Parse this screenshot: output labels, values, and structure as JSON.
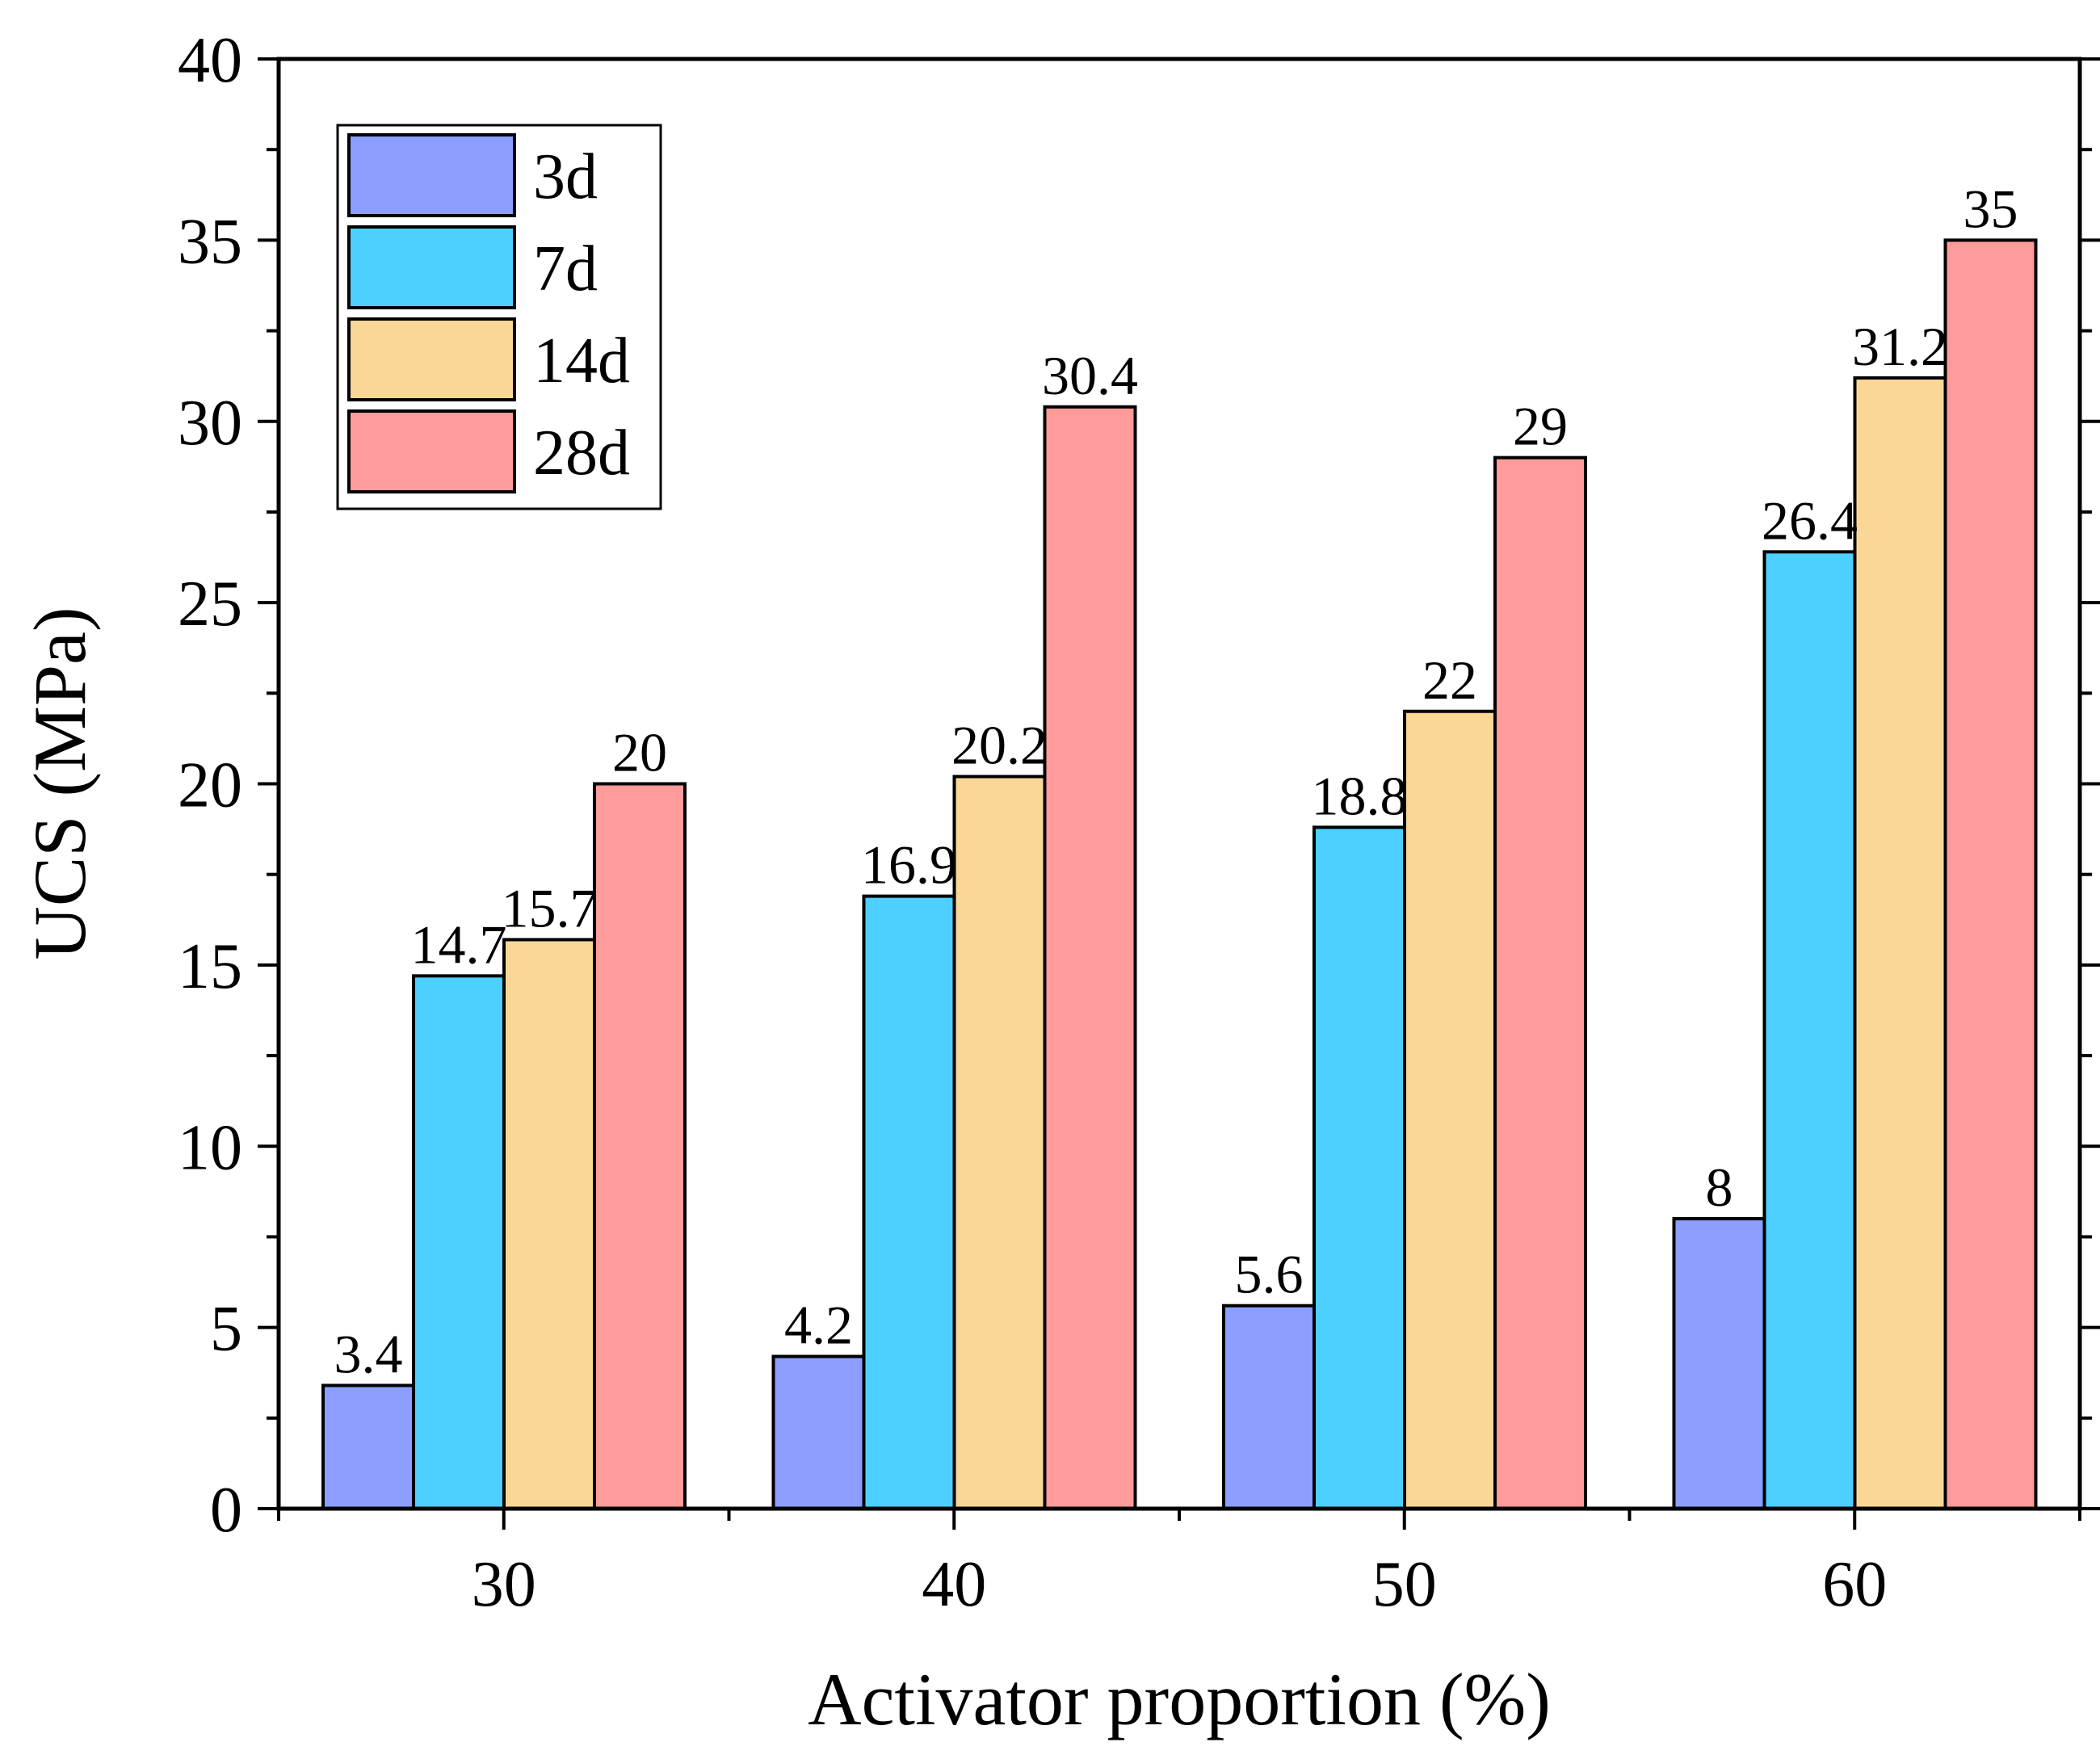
{
  "chart_data": {
    "type": "bar",
    "title": "",
    "xlabel": "Activator proportion (%)",
    "ylabel": "UCS (MPa)",
    "categories": [
      "30",
      "40",
      "50",
      "60"
    ],
    "ylim": [
      0,
      40
    ],
    "yticks": [
      "0",
      "5",
      "10",
      "15",
      "20",
      "25",
      "30",
      "35",
      "40"
    ],
    "legend_position": "top-left",
    "grid": false,
    "series": [
      {
        "name": "3d",
        "color": "#8C9EFF",
        "values": [
          3.4,
          4.2,
          5.6,
          8
        ],
        "labels": [
          "3.4",
          "4.2",
          "5.6",
          "8"
        ]
      },
      {
        "name": "7d",
        "color": "#4DD0FF",
        "values": [
          14.7,
          16.9,
          18.8,
          26.4
        ],
        "labels": [
          "14.7",
          "16.9",
          "18.8",
          "26.4"
        ]
      },
      {
        "name": "14d",
        "color": "#FAD796",
        "values": [
          15.7,
          20.2,
          22,
          31.2
        ],
        "labels": [
          "15.7",
          "20.2",
          "22",
          "31.2"
        ]
      },
      {
        "name": "28d",
        "color": "#FF9B9B",
        "values": [
          20,
          30.4,
          29,
          35
        ],
        "labels": [
          "20",
          "30.4",
          "29",
          "35"
        ]
      }
    ]
  }
}
